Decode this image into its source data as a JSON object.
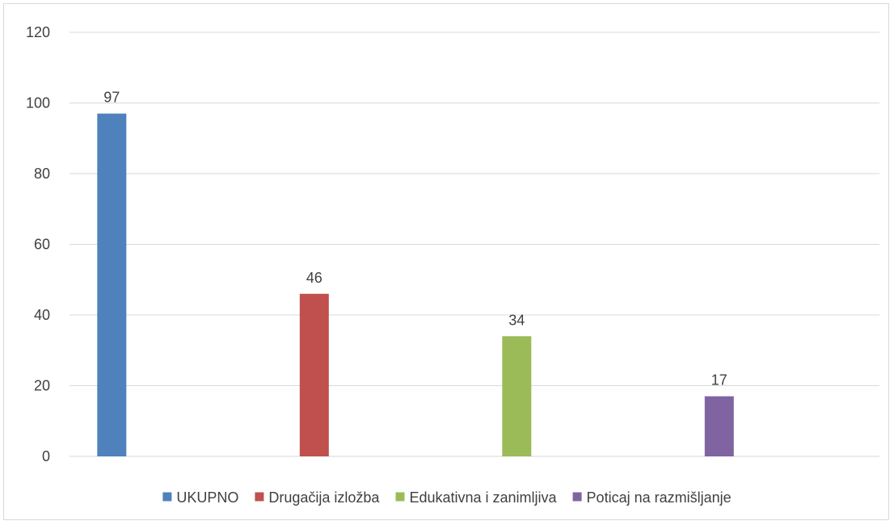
{
  "chart_data": {
    "type": "bar",
    "title": "",
    "xlabel": "",
    "ylabel": "",
    "ylim": [
      0,
      120
    ],
    "yticks": [
      0,
      20,
      40,
      60,
      80,
      100,
      120
    ],
    "grid": true,
    "legend_position": "bottom",
    "categories": [
      "UKUPNO",
      "Drugačija izložba",
      "Edukativna i zanimljiva",
      "Poticaj na razmišljanje"
    ],
    "values": [
      97,
      46,
      34,
      17
    ],
    "colors": [
      "#4f81bd",
      "#c0504d",
      "#9bbb59",
      "#8064a2"
    ],
    "data_labels": [
      "97",
      "46",
      "34",
      "17"
    ]
  }
}
